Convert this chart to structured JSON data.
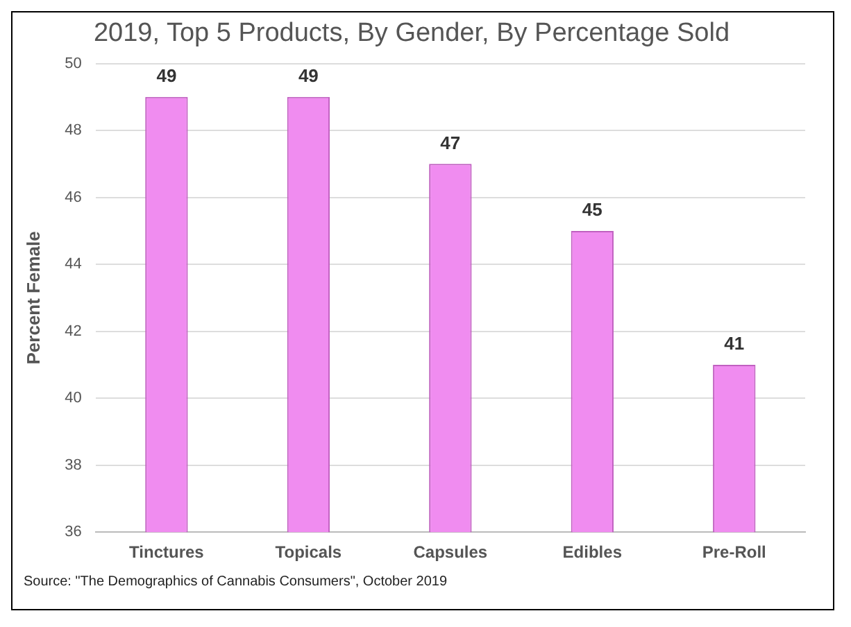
{
  "chart_data": {
    "type": "bar",
    "title": "2019, Top 5 Products, By Gender, By Percentage Sold",
    "ylabel": "Percent Female",
    "categories": [
      "Tinctures",
      "Topicals",
      "Capsules",
      "Edibles",
      "Pre-Roll"
    ],
    "values": [
      49,
      49,
      47,
      45,
      41
    ],
    "color": "#f08cf0",
    "ylim": [
      36,
      50
    ],
    "yticks": [
      36,
      38,
      40,
      42,
      44,
      46,
      48,
      50
    ],
    "grid": "y",
    "data_labels": true,
    "annotations": [
      "Source: \"The Demographics of Cannabis Consumers\", October 2019"
    ]
  }
}
